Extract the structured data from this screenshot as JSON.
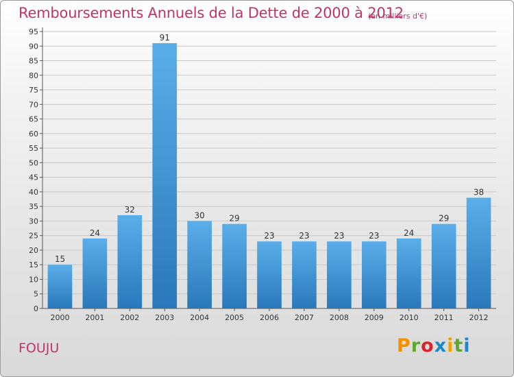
{
  "header": {
    "title": "Remboursements Annuels de la Dette de 2000 à 2012",
    "unit": "(en milliers d'€)"
  },
  "footer": {
    "commune": "FOUJU",
    "logo": [
      "P",
      "r",
      "o",
      "x",
      "i",
      "t",
      "i"
    ]
  },
  "colors": {
    "title": "#c0336c",
    "bar_top": "#5aaee9",
    "bar_bottom": "#2a78bb",
    "logo": [
      "#f39200",
      "#5ea72a",
      "#d6262d",
      "#1d88c9",
      "#f2a100",
      "#5ea72a",
      "#1d88c9"
    ]
  },
  "chart_data": {
    "type": "bar",
    "categories": [
      "2000",
      "2001",
      "2002",
      "2003",
      "2004",
      "2005",
      "2006",
      "2007",
      "2008",
      "2009",
      "2010",
      "2011",
      "2012"
    ],
    "values": [
      15,
      24,
      32,
      91,
      30,
      29,
      23,
      23,
      23,
      23,
      24,
      29,
      38
    ],
    "ylim": [
      0,
      95
    ],
    "yticks": [
      0,
      5,
      10,
      15,
      20,
      25,
      30,
      35,
      40,
      45,
      50,
      55,
      60,
      65,
      70,
      75,
      80,
      85,
      90,
      95
    ],
    "grid": true,
    "show_value_labels": true
  }
}
